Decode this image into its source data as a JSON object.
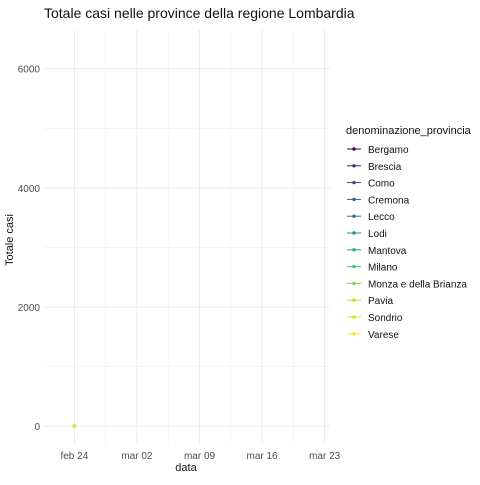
{
  "chart_data": {
    "type": "line",
    "title": "Totale casi nelle province della regione Lombardia",
    "xlabel": "data",
    "ylabel": "Totale casi",
    "x_ticks": [
      "feb 24",
      "mar 02",
      "mar 09",
      "mar 16",
      "mar 23"
    ],
    "x_tick_days": [
      0,
      7,
      14,
      21,
      28
    ],
    "xlim": [
      -3.4,
      28.6
    ],
    "y_ticks": [
      0,
      2000,
      4000,
      6000
    ],
    "ylim": [
      -300,
      6650
    ],
    "grid": true,
    "legend_title": "denominazione_provincia",
    "legend_position": "right",
    "series": [
      {
        "name": "Bergamo",
        "color": "#440154",
        "points": [
          [
            0,
            0
          ]
        ]
      },
      {
        "name": "Brescia",
        "color": "#482576",
        "points": [
          [
            0,
            0
          ]
        ]
      },
      {
        "name": "Como",
        "color": "#414487",
        "points": [
          [
            0,
            0
          ]
        ]
      },
      {
        "name": "Cremona",
        "color": "#35608d",
        "points": [
          [
            0,
            0
          ]
        ]
      },
      {
        "name": "Lecco",
        "color": "#2a788e",
        "points": [
          [
            0,
            0
          ]
        ]
      },
      {
        "name": "Lodi",
        "color": "#21908c",
        "points": [
          [
            0,
            0
          ]
        ]
      },
      {
        "name": "Mantova",
        "color": "#22a884",
        "points": [
          [
            0,
            0
          ]
        ]
      },
      {
        "name": "Milano",
        "color": "#43bf71",
        "points": [
          [
            0,
            0
          ]
        ]
      },
      {
        "name": "Monza e della Brianza",
        "color": "#7ad151",
        "points": [
          [
            0,
            0
          ]
        ]
      },
      {
        "name": "Pavia",
        "color": "#bbdf27",
        "points": [
          [
            0,
            0
          ]
        ]
      },
      {
        "name": "Sondrio",
        "color": "#d8e219",
        "points": [
          [
            0,
            0
          ]
        ]
      },
      {
        "name": "Varese",
        "color": "#fde725",
        "points": [
          [
            0,
            0
          ]
        ]
      }
    ]
  }
}
